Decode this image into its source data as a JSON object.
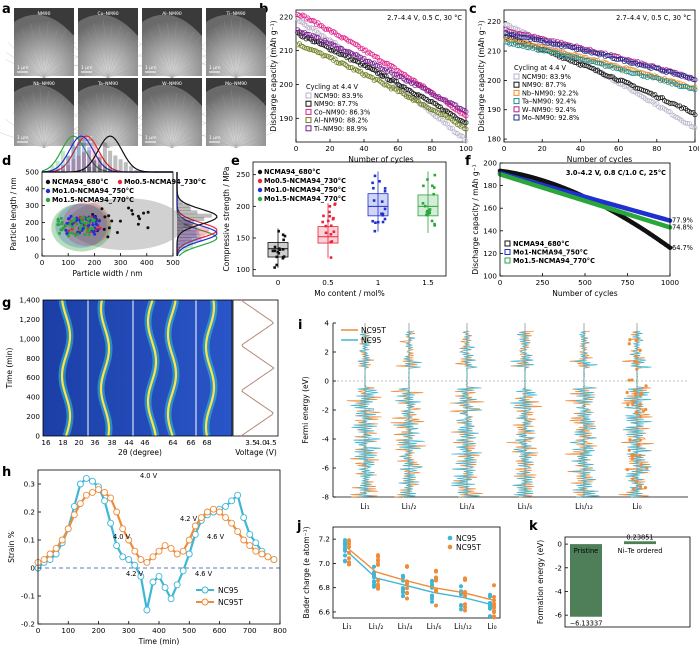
{
  "colors": {
    "pink": "#e0218a",
    "black": "#111111",
    "grey": "#b9b2c9",
    "olive": "#6c7d1f",
    "purple": "#7a1f8f",
    "orange": "#f28e2b",
    "teal": "#1f8a8a",
    "navy": "#1d2c8a",
    "magenta": "#b1228b",
    "nc95": "#3fb6d6",
    "nc95t": "#ef8c3a",
    "bar": "#4f7f58",
    "blue": "#1f30d0",
    "green": "#2aa63b",
    "red": "#e8243a"
  },
  "chart_data": [
    {
      "panel": "a",
      "type": "image",
      "labels": [
        "NM90",
        "Co–NM90",
        "Al–NM90",
        "Ti–NM90",
        "Nb–NM90",
        "Ta–NM90",
        "W–NM90",
        "Mo–NM90"
      ],
      "scale_bar": "1 μm"
    },
    {
      "panel": "b",
      "type": "scatter",
      "title": "",
      "condition": "2.7–4.4 V, 0.5 C, 30 °C",
      "legend_title": "Cycling at 4.4 V",
      "xlabel": "Number of cycles",
      "ylabel": "Discharge capacity (mAh g⁻¹)",
      "xlim": [
        0,
        100
      ],
      "ylim": [
        183,
        222
      ],
      "xticks": [
        0,
        20,
        40,
        60,
        80,
        100
      ],
      "yticks": [
        190,
        200,
        210,
        220
      ],
      "series": [
        {
          "name": "NCM90: 83.9%",
          "color": "grey",
          "start": 219,
          "end": 183.5
        },
        {
          "name": "NM90: 87.7%",
          "color": "black",
          "start": 215,
          "end": 188.6
        },
        {
          "name": "Co–NM90: 86.3%",
          "color": "pink",
          "start": 221,
          "end": 190.7
        },
        {
          "name": "Al–NM90: 88.2%",
          "color": "olive",
          "start": 212,
          "end": 187
        },
        {
          "name": "Ti–NM90: 88.9%",
          "color": "purple",
          "start": 216,
          "end": 192
        }
      ]
    },
    {
      "panel": "c",
      "type": "scatter",
      "condition": "2.7–4.4 V, 0.5 C, 30 °C",
      "legend_title": "Cycling at 4.4 V",
      "xlabel": "Number of cycles",
      "ylabel": "Discharge capacity (mAh g⁻¹)",
      "xlim": [
        0,
        100
      ],
      "ylim": [
        179,
        224
      ],
      "xticks": [
        0,
        20,
        40,
        60,
        80,
        100
      ],
      "yticks": [
        180,
        190,
        200,
        210,
        220
      ],
      "series": [
        {
          "name": "NCM90: 83.9%",
          "color": "grey",
          "start": 219,
          "end": 183.7
        },
        {
          "name": "NM90: 87.7%",
          "color": "black",
          "start": 215,
          "end": 188.6
        },
        {
          "name": "Nb–NM90: 92.2%",
          "color": "orange",
          "start": 214,
          "end": 197.3
        },
        {
          "name": "Ta–NM90: 92.4%",
          "color": "teal",
          "start": 213,
          "end": 196.8
        },
        {
          "name": "W–NM90: 92.4%",
          "color": "magenta",
          "start": 217,
          "end": 200.5
        },
        {
          "name": "Mo–NM90: 92.8%",
          "color": "navy",
          "start": 216,
          "end": 200.4
        }
      ]
    },
    {
      "panel": "d",
      "type": "scatter",
      "xlabel": "Particle width / nm",
      "ylabel": "Particle length / nm",
      "xlim": [
        0,
        500
      ],
      "ylim": [
        0,
        500
      ],
      "xticks": [
        0,
        100,
        200,
        300,
        400,
        500
      ],
      "yticks": [
        0,
        100,
        200,
        300,
        400,
        500
      ],
      "series": [
        {
          "name": "NCMA94_680°C",
          "color": "black",
          "cx": 300,
          "cy": 200,
          "n": 22
        },
        {
          "name": "Mo0.5-NCMA94_730°C",
          "color": "red",
          "cx": 160,
          "cy": 180,
          "n": 34
        },
        {
          "name": "Mo1.0-NCMA94_750°C",
          "color": "blue",
          "cx": 150,
          "cy": 185,
          "n": 46
        },
        {
          "name": "Mo1.5-NCMA94_770°C",
          "color": "green",
          "cx": 130,
          "cy": 175,
          "n": 46
        }
      ]
    },
    {
      "panel": "e",
      "type": "box",
      "xlabel": "Mo content / mol%",
      "ylabel": "Compressive strength / MPa",
      "categories": [
        "0",
        "0.5",
        "1",
        "1.5"
      ],
      "ylim": [
        90,
        270
      ],
      "yticks": [
        100,
        150,
        200,
        250
      ],
      "series": [
        {
          "name": "NCMA94_680°C",
          "color": "black",
          "q1": 120,
          "median": 133,
          "q3": 143,
          "min": 103,
          "max": 165
        },
        {
          "name": "Mo0.5-NCMA94_730°C",
          "color": "red",
          "q1": 142,
          "median": 152,
          "q3": 168,
          "min": 118,
          "max": 205
        },
        {
          "name": "Mo1.0-NCMA94_750°C",
          "color": "blue",
          "q1": 185,
          "median": 200,
          "q3": 220,
          "min": 160,
          "max": 255
        },
        {
          "name": "Mo1.5-NCMA94_770°C",
          "color": "green",
          "q1": 185,
          "median": 200,
          "q3": 218,
          "min": 158,
          "max": 255
        }
      ]
    },
    {
      "panel": "f",
      "type": "scatter",
      "condition": "3.0–4.2 V, 0.8 C/1.0 C, 25°C",
      "xlabel": "Number of cycles",
      "ylabel": "Discharge capacity / mAh g⁻¹",
      "xlim": [
        0,
        1000
      ],
      "ylim": [
        100,
        200
      ],
      "xticks": [
        0,
        250,
        500,
        750,
        1000
      ],
      "yticks": [
        100,
        120,
        140,
        160,
        180,
        200
      ],
      "series": [
        {
          "name": "NCMA94_680°C",
          "color": "black",
          "start": 193,
          "end": 125,
          "label": "64.7%"
        },
        {
          "name": "Mo1-NCMA94_750°C",
          "color": "blue",
          "start": 191,
          "end": 149,
          "label": "77.9%"
        },
        {
          "name": "Mo1.5-NCMA94_770°C",
          "color": "green",
          "start": 190,
          "end": 143,
          "label": "74.8%"
        }
      ]
    },
    {
      "panel": "g",
      "type": "heatmap",
      "xlabel": "2θ (degree)",
      "xticks": [
        "16",
        "18",
        "20",
        "36",
        "38",
        "44",
        "46",
        "64",
        "66",
        "68"
      ],
      "ylabel": "Time (min)",
      "ylim": [
        0,
        1400
      ],
      "yticks": [
        0,
        200,
        400,
        600,
        800,
        1000,
        1200,
        1400
      ],
      "voltage_label": "Voltage (V)",
      "vticks": [
        "3.5",
        "4.0",
        "4.5"
      ]
    },
    {
      "panel": "h",
      "type": "line",
      "xlabel": "Time (min)",
      "ylabel": "Strain %",
      "xlim": [
        0,
        800
      ],
      "ylim": [
        -0.2,
        0.35
      ],
      "xticks": [
        0,
        100,
        200,
        300,
        400,
        500,
        600,
        700,
        800
      ],
      "yticks": [
        -0.2,
        -0.1,
        0.0,
        0.1,
        0.2,
        0.3
      ],
      "x": [
        0,
        20,
        40,
        60,
        80,
        100,
        120,
        140,
        160,
        180,
        200,
        220,
        240,
        260,
        280,
        300,
        320,
        340,
        360,
        380,
        400,
        420,
        440,
        460,
        480,
        500,
        520,
        540,
        560,
        580,
        600,
        620,
        640,
        660,
        680,
        700,
        720,
        740,
        760,
        780
      ],
      "series": [
        {
          "name": "NC95",
          "color": "nc95",
          "values": [
            0.0,
            0.02,
            0.03,
            0.05,
            0.09,
            0.14,
            0.22,
            0.3,
            0.32,
            0.31,
            0.29,
            0.24,
            0.16,
            0.08,
            0.04,
            0.03,
            0.01,
            -0.03,
            -0.15,
            -0.05,
            -0.03,
            -0.07,
            -0.11,
            -0.06,
            -0.01,
            0.05,
            0.12,
            0.17,
            0.19,
            0.2,
            0.21,
            0.22,
            0.24,
            0.26,
            0.18,
            0.12,
            0.09,
            0.06,
            0.04,
            0.03
          ]
        },
        {
          "name": "NC95T",
          "color": "nc95t",
          "values": [
            0.02,
            0.03,
            0.05,
            0.07,
            0.1,
            0.14,
            0.19,
            0.23,
            0.26,
            0.27,
            0.28,
            0.27,
            0.25,
            0.2,
            0.14,
            0.1,
            0.06,
            0.03,
            0.02,
            0.04,
            0.06,
            0.08,
            0.07,
            0.05,
            0.06,
            0.1,
            0.15,
            0.18,
            0.2,
            0.21,
            0.2,
            0.18,
            0.16,
            0.13,
            0.1,
            0.08,
            0.06,
            0.05,
            0.04,
            0.03
          ]
        }
      ],
      "annotations": [
        "4.0 V",
        "4.2 V",
        "4.6 V",
        "4.0 V",
        "4.2 V",
        "4.6 V"
      ]
    },
    {
      "panel": "i",
      "type": "line",
      "ylabel": "Fermi energy (eV)",
      "ylim": [
        -8,
        4
      ],
      "yticks": [
        -8,
        -6,
        -4,
        -2,
        0,
        2,
        4
      ],
      "categories": [
        "Li₁",
        "Li₁/₂",
        "Li₁/₄",
        "Li₁/₆",
        "Li₁/₁₂",
        "Li₀"
      ],
      "legend": [
        "NC95T",
        "NC95"
      ]
    },
    {
      "panel": "j",
      "type": "scatter",
      "ylabel": "Bader charge (e atom⁻¹)",
      "ylim": [
        6.55,
        7.3
      ],
      "yticks": [
        6.6,
        6.8,
        7.0,
        7.2
      ],
      "categories": [
        "Li₁",
        "Li₁/₂",
        "Li₁/₄",
        "Li₁/₆",
        "Li₁/₁₂",
        "Li₀"
      ],
      "series": [
        {
          "name": "NC95",
          "color": "nc95",
          "trend": [
            7.1,
            6.88,
            6.82,
            6.76,
            6.72,
            6.66
          ]
        },
        {
          "name": "NC95T",
          "color": "nc95t",
          "trend": [
            7.13,
            6.93,
            6.86,
            6.8,
            6.76,
            6.7
          ]
        }
      ]
    },
    {
      "panel": "k",
      "type": "bar",
      "ylabel": "Formation energy (eV)",
      "ylim": [
        -7,
        0.6
      ],
      "yticks": [
        -6,
        -4,
        -2,
        0
      ],
      "categories": [
        "Pristine",
        "Ni–Te ordered"
      ],
      "values": [
        -6.13337,
        0.23851
      ],
      "value_labels": [
        "−6.13337",
        "0.23851"
      ]
    }
  ]
}
